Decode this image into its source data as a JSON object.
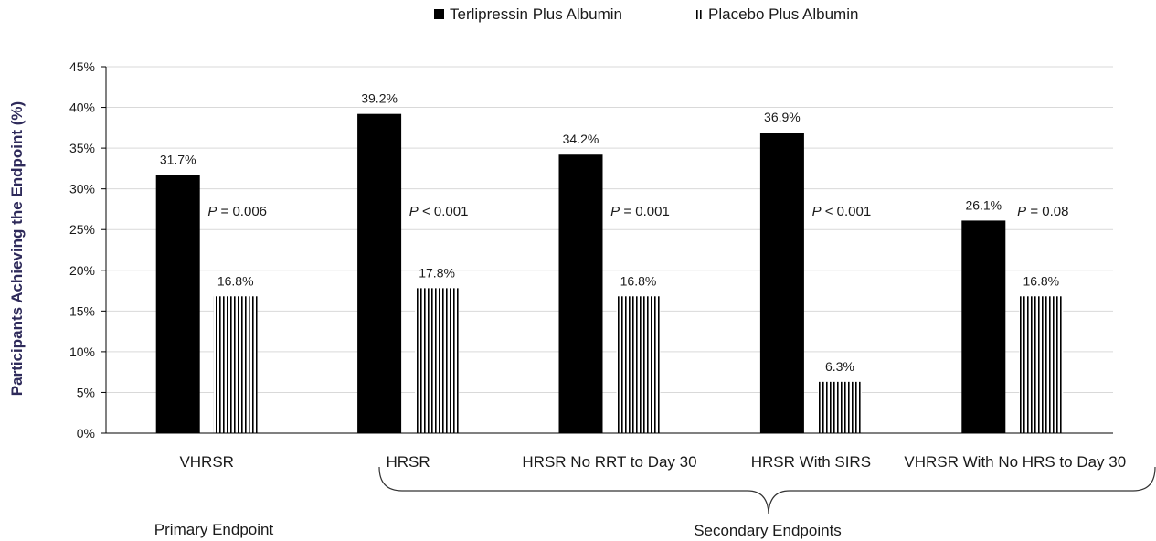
{
  "chart_data": {
    "type": "bar",
    "categories": [
      "VHRSR",
      "HRSR",
      "HRSR  No RRT to Day 30",
      "HRSR With SIRS",
      "VHRSR  With No HRS to Day 30"
    ],
    "series": [
      {
        "name": "Terlipressin Plus Albumin",
        "values": [
          31.7,
          39.2,
          34.2,
          36.9,
          26.1
        ],
        "labels": [
          "31.7%",
          "39.2%",
          "34.2%",
          "36.9%",
          "26.1%"
        ],
        "color": "#000000",
        "fill": "solid"
      },
      {
        "name": "Placebo Plus Albumin",
        "values": [
          16.8,
          17.8,
          16.8,
          6.3,
          16.8
        ],
        "labels": [
          "16.8%",
          "17.8%",
          "16.8%",
          "6.3%",
          "16.8%"
        ],
        "color": "#000000",
        "fill": "vertical-stripes"
      }
    ],
    "p_values": [
      {
        "p": "P",
        "rest": " = 0.006"
      },
      {
        "p": "P",
        "rest": " < 0.001"
      },
      {
        "p": "P",
        "rest": " = 0.001"
      },
      {
        "p": "P",
        "rest": " < 0.001"
      },
      {
        "p": "P",
        "rest": " = 0.08"
      }
    ],
    "ylabel": "Participants Achieving the Endpoint (%)",
    "xlabel": "",
    "ylim": [
      0,
      45
    ],
    "yticks": [
      0,
      5,
      10,
      15,
      20,
      25,
      30,
      35,
      40,
      45
    ],
    "ytick_labels": [
      "0%",
      "5%",
      "10%",
      "15%",
      "20%",
      "25%",
      "30%",
      "35%",
      "40%",
      "45%"
    ],
    "grid": true,
    "legend_position": "top",
    "groups": [
      {
        "label": "Primary Endpoint",
        "categories": [
          0
        ]
      },
      {
        "label": "Secondary Endpoints",
        "categories": [
          1,
          2,
          3,
          4
        ]
      }
    ],
    "colors": {
      "ylabel": "#2e2a5a",
      "grid": "#d9d9d9",
      "axis": "#000000"
    }
  }
}
